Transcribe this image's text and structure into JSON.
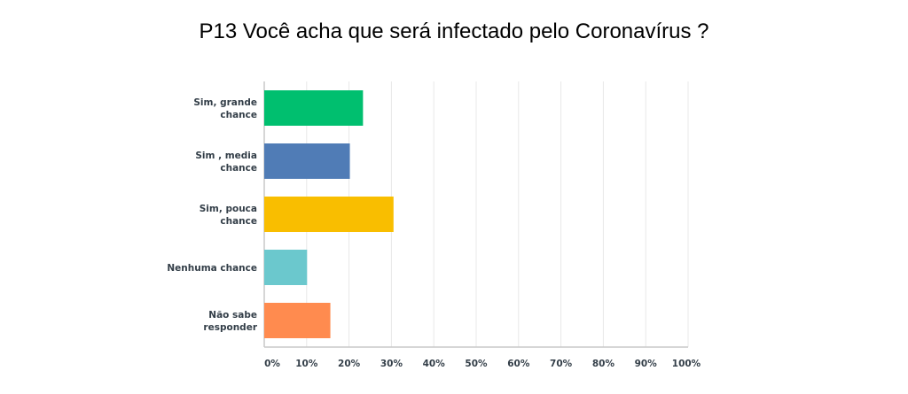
{
  "chart_data": {
    "type": "bar",
    "orientation": "horizontal",
    "title": "P13 Você acha que será infectado pelo Coronavírus ?",
    "categories": [
      [
        "Sim, grande",
        "chance"
      ],
      [
        "Sim , media",
        "chance"
      ],
      [
        "Sim, pouca",
        "chance"
      ],
      [
        "Nenhuma chance"
      ],
      [
        "Não sabe",
        "responder"
      ]
    ],
    "values": [
      23.3,
      20.2,
      30.5,
      10.1,
      15.6
    ],
    "colors": [
      "#00bf6f",
      "#507cb6",
      "#f9be00",
      "#6bc8cd",
      "#ff8b4f"
    ],
    "xlim": [
      0,
      100
    ],
    "xticks": [
      "0%",
      "10%",
      "20%",
      "30%",
      "40%",
      "50%",
      "60%",
      "70%",
      "80%",
      "90%",
      "100%"
    ],
    "grid": true,
    "xlabel": "",
    "ylabel": ""
  }
}
